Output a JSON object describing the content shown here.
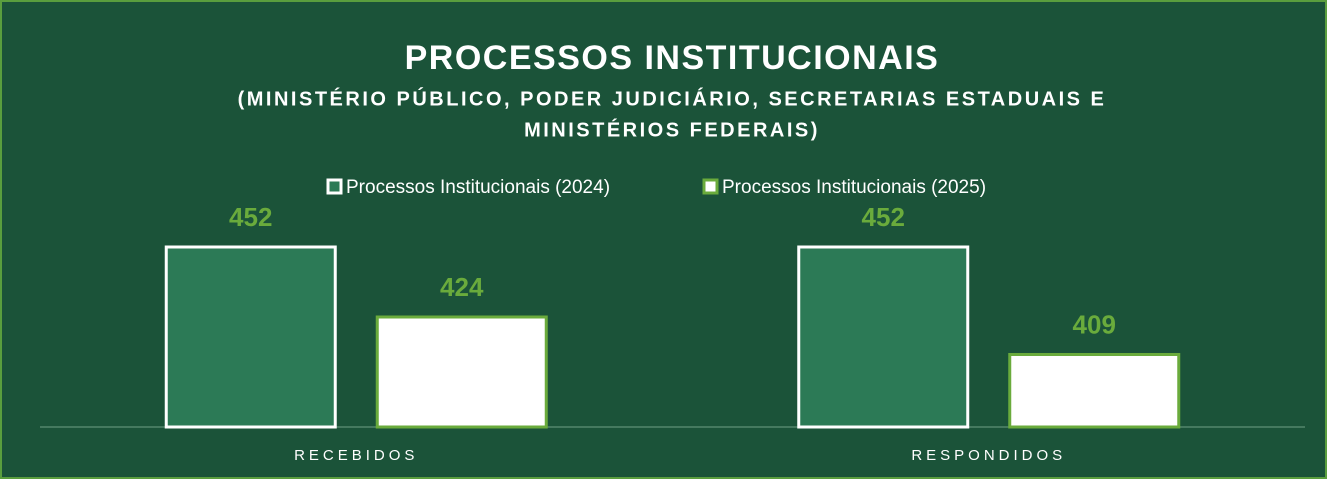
{
  "chart_data": {
    "type": "bar",
    "title": "PROCESSOS INSTITUCIONAIS",
    "subtitle": [
      "(MINISTÉRIO PÚBLICO, PODER JUDICIÁRIO, SECRETARIAS ESTADUAIS E",
      "MINISTÉRIOS FEDERAIS)"
    ],
    "categories": [
      "RECEBIDOS",
      "RESPONDIDOS"
    ],
    "series": [
      {
        "name": "Processos Institucionais (2024)",
        "color": "#2c7a56",
        "stroke": "#ffffff",
        "values": [
          452,
          452
        ]
      },
      {
        "name": "Processos Institucionais (2025)",
        "color": "#ffffff",
        "stroke": "#6aab3c",
        "values": [
          424,
          409
        ]
      }
    ],
    "label_color": "#6aab3c",
    "ylim": [
      380,
      470
    ]
  }
}
